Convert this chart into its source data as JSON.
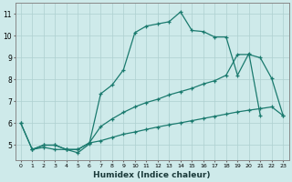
{
  "background_color": "#ceeaea",
  "grid_color": "#aed0d0",
  "line_color": "#1a7a6e",
  "xlabel": "Humidex (Indice chaleur)",
  "xlim": [
    -0.5,
    23.5
  ],
  "ylim": [
    4.3,
    11.5
  ],
  "yticks": [
    5,
    6,
    7,
    8,
    9,
    10,
    11
  ],
  "line1_x": [
    0,
    1,
    2,
    3,
    4,
    5,
    6,
    7,
    8,
    9,
    10,
    11,
    12,
    13,
    14,
    15,
    16,
    17,
    18,
    19,
    20,
    21
  ],
  "line1_y": [
    6.0,
    4.8,
    4.9,
    4.8,
    4.8,
    4.65,
    5.05,
    7.35,
    7.75,
    8.45,
    10.15,
    10.45,
    10.55,
    10.65,
    11.1,
    10.25,
    10.2,
    9.95,
    9.95,
    8.2,
    9.2,
    6.35
  ],
  "line2_x": [
    0,
    1,
    2,
    3,
    4,
    5,
    6,
    7,
    8,
    9,
    10,
    11,
    12,
    13,
    14,
    15,
    16,
    17,
    18,
    19,
    20,
    21,
    22,
    23
  ],
  "line2_y": [
    6.0,
    4.8,
    5.0,
    5.0,
    4.8,
    4.8,
    5.1,
    5.85,
    6.2,
    6.5,
    6.75,
    6.95,
    7.1,
    7.3,
    7.45,
    7.6,
    7.8,
    7.95,
    8.2,
    9.15,
    9.15,
    9.0,
    8.05,
    6.35
  ],
  "line3_x": [
    1,
    2,
    3,
    4,
    5,
    6,
    7,
    8,
    9,
    10,
    11,
    12,
    13,
    14,
    15,
    16,
    17,
    18,
    19,
    20,
    21,
    22,
    23
  ],
  "line3_y": [
    4.8,
    5.0,
    5.0,
    4.8,
    4.8,
    5.1,
    5.2,
    5.35,
    5.5,
    5.6,
    5.72,
    5.83,
    5.93,
    6.02,
    6.12,
    6.22,
    6.32,
    6.42,
    6.52,
    6.6,
    6.67,
    6.75,
    6.35
  ]
}
